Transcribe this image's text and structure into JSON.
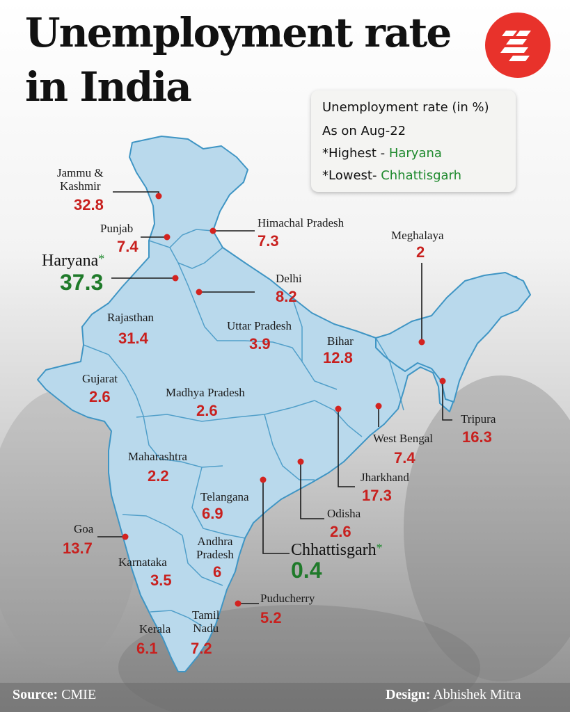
{
  "title_line1": "Unemployment rate",
  "title_line2": "in India",
  "legend": {
    "line1": "Unemployment rate (in %)",
    "line2": "As on Aug-22",
    "highest_prefix": "*Highest - ",
    "highest_state": "Haryana",
    "lowest_prefix": "*Lowest- ",
    "lowest_state": "Chhattisgarh"
  },
  "states": {
    "jk": {
      "label1": "Jammu &",
      "label2": "Kashmir",
      "value": "32.8"
    },
    "punjab": {
      "label": "Punjab",
      "value": "7.4"
    },
    "himachal": {
      "label": "Himachal Pradesh",
      "value": "7.3"
    },
    "meghalaya": {
      "label": "Meghalaya",
      "value": "2"
    },
    "haryana": {
      "label": "Haryana",
      "asterisk": "*",
      "value": "37.3"
    },
    "delhi": {
      "label": "Delhi",
      "value": "8.2"
    },
    "rajasthan": {
      "label": "Rajasthan",
      "value": "31.4"
    },
    "up": {
      "label": "Uttar Pradesh",
      "value": "3.9"
    },
    "bihar": {
      "label": "Bihar",
      "value": "12.8"
    },
    "gujarat": {
      "label": "Gujarat",
      "value": "2.6"
    },
    "mp": {
      "label": "Madhya Pradesh",
      "value": "2.6"
    },
    "tripura": {
      "label": "Tripura",
      "value": "16.3"
    },
    "wb": {
      "label": "West Bengal",
      "value": "7.4"
    },
    "maharashtra": {
      "label": "Maharashtra",
      "value": "2.2"
    },
    "jharkhand": {
      "label": "Jharkhand",
      "value": "17.3"
    },
    "telangana": {
      "label": "Telangana",
      "value": "6.9"
    },
    "odisha": {
      "label": "Odisha",
      "value": "2.6"
    },
    "goa": {
      "label": "Goa",
      "value": "13.7"
    },
    "chhattisgarh": {
      "label": "Chhattisgarh",
      "asterisk": "*",
      "value": "0.4"
    },
    "ap": {
      "label1": "Andhra",
      "label2": "Pradesh",
      "value": "6"
    },
    "karnataka": {
      "label": "Karnataka",
      "value": "3.5"
    },
    "puducherry": {
      "label": "Puducherry",
      "value": "5.2"
    },
    "tn": {
      "label1": "Tamil",
      "label2": "Nadu",
      "value": "7.2"
    },
    "kerala": {
      "label": "Kerala",
      "value": "6.1"
    }
  },
  "footer": {
    "source_label": "Source:",
    "source_value": "CMIE",
    "design_label": "Design:",
    "design_value": "Abhishek Mitra"
  },
  "colors": {
    "map_fill": "#b9d9ec",
    "map_stroke": "#3f95c4",
    "value_red": "#c8201e",
    "highlight_green": "#1f7a2a",
    "logo_red": "#e8322b"
  }
}
